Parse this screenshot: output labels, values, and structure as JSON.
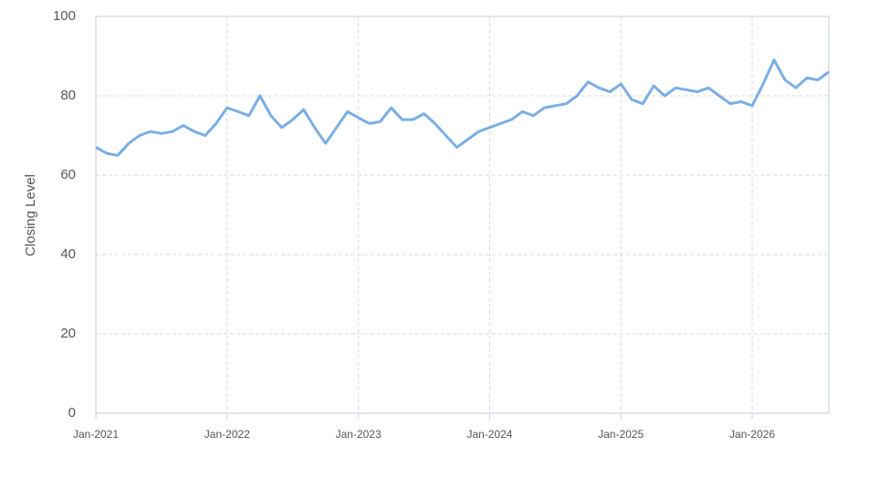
{
  "chart_data": {
    "type": "line",
    "y_label": "Closing Level",
    "color": "#7aaee3",
    "grid": true,
    "x": [
      "2021-01",
      "2021-02",
      "2021-03",
      "2021-04",
      "2021-05",
      "2021-06",
      "2021-07",
      "2021-08",
      "2021-09",
      "2021-10",
      "2021-11",
      "2021-12",
      "2022-01",
      "2022-02",
      "2022-03",
      "2022-04",
      "2022-05",
      "2022-06",
      "2022-07",
      "2022-08",
      "2022-09",
      "2022-10",
      "2022-11",
      "2022-12",
      "2023-01",
      "2023-02",
      "2023-03",
      "2023-04",
      "2023-05",
      "2023-06",
      "2023-07",
      "2023-08",
      "2023-09",
      "2023-10",
      "2023-11",
      "2023-12",
      "2024-01",
      "2024-02",
      "2024-03",
      "2024-04",
      "2024-05",
      "2024-06",
      "2024-07",
      "2024-08",
      "2024-09",
      "2024-10",
      "2024-11",
      "2024-12",
      "2025-01",
      "2025-02",
      "2025-03",
      "2025-04",
      "2025-05",
      "2025-06",
      "2025-07",
      "2025-08",
      "2025-09",
      "2025-10",
      "2025-11",
      "2025-12",
      "2026-01",
      "2026-02",
      "2026-03",
      "2026-04",
      "2026-05",
      "2026-06",
      "2026-07",
      "2026-08"
    ],
    "values": [
      67,
      65.5,
      65,
      68,
      70,
      71,
      70.5,
      71,
      72.5,
      71,
      70,
      73,
      77,
      76,
      75,
      80,
      75,
      72,
      74,
      76.5,
      72,
      68,
      72,
      76,
      74.5,
      73,
      73.5,
      77,
      74,
      74,
      75.5,
      73,
      70,
      67,
      69,
      71,
      72,
      73,
      74,
      76,
      75,
      77,
      77.5,
      78,
      80,
      83.5,
      82,
      81,
      83,
      79,
      78,
      82.5,
      80,
      82,
      81.5,
      81,
      82,
      80,
      78,
      78.5,
      77.5,
      83,
      89,
      84,
      82,
      84.5,
      84,
      86
    ],
    "xlim": [
      "2021-01",
      "2026-08"
    ],
    "xticks": [
      {
        "value": "2021-01",
        "label": "Jan-2021"
      },
      {
        "value": "2022-01",
        "label": "Jan-2022"
      },
      {
        "value": "2023-01",
        "label": "Jan-2023"
      },
      {
        "value": "2024-01",
        "label": "Jan-2024"
      },
      {
        "value": "2025-01",
        "label": "Jan-2025"
      },
      {
        "value": "2026-01",
        "label": "Jan-2026"
      }
    ],
    "ylim": [
      0,
      100
    ],
    "yticks": [
      0,
      20,
      40,
      60,
      80,
      100
    ]
  }
}
